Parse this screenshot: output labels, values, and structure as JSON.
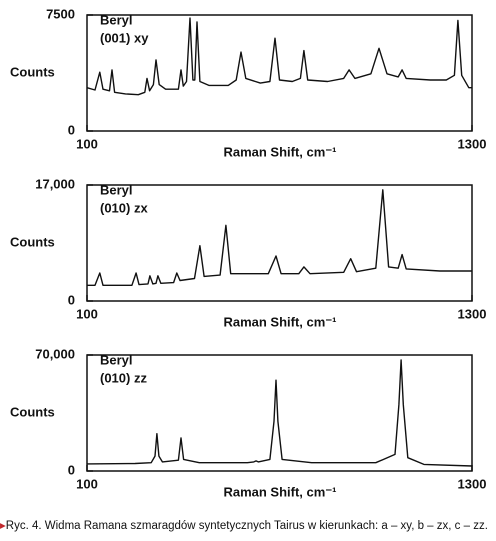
{
  "chart_data": [
    {
      "type": "line",
      "annotation": [
        "Beryl",
        "(001) xy"
      ],
      "ylabel": "Counts",
      "xlabel": "Raman Shift, cm⁻¹",
      "xlim": [
        100,
        1300
      ],
      "xticks": [
        100,
        1300
      ],
      "ylim": [
        0,
        7500
      ],
      "yticks": [
        0,
        7500
      ],
      "x": [
        100,
        125,
        140,
        150,
        170,
        178,
        186,
        220,
        260,
        280,
        287,
        295,
        307,
        315,
        325,
        345,
        385,
        393,
        400,
        410,
        421,
        430,
        436,
        443,
        452,
        480,
        540,
        565,
        580,
        595,
        640,
        670,
        686,
        700,
        740,
        765,
        776,
        788,
        850,
        900,
        917,
        935,
        985,
        1010,
        1035,
        1070,
        1082,
        1095,
        1170,
        1220,
        1245,
        1256,
        1268,
        1290,
        1300
      ],
      "series": [
        {
          "color": "#111111",
          "values": [
            2800,
            2650,
            3800,
            2700,
            2600,
            3950,
            2500,
            2400,
            2350,
            2500,
            3400,
            2600,
            3000,
            4600,
            3000,
            2700,
            2700,
            3950,
            2900,
            3200,
            7300,
            3300,
            3300,
            7050,
            3200,
            2950,
            2950,
            3300,
            5100,
            3400,
            3100,
            3200,
            6000,
            3300,
            3200,
            3400,
            5200,
            3300,
            3200,
            3400,
            3950,
            3400,
            3700,
            5350,
            3700,
            3500,
            3950,
            3400,
            3300,
            3300,
            3600,
            7150,
            3600,
            2800,
            2800
          ]
        }
      ]
    },
    {
      "type": "line",
      "annotation": [
        "Beryl",
        "(010) zx"
      ],
      "ylabel": "Counts",
      "xlabel": "Raman Shift, cm⁻¹",
      "xlim": [
        100,
        1300
      ],
      "xticks": [
        100,
        1300
      ],
      "ylim": [
        0,
        17000
      ],
      "yticks": [
        0,
        {
          "value": 17000,
          "label": "17,000"
        }
      ],
      "x": [
        100,
        125,
        140,
        150,
        240,
        253,
        262,
        290,
        296,
        305,
        315,
        321,
        330,
        370,
        380,
        390,
        435,
        452,
        465,
        515,
        533,
        548,
        665,
        689,
        705,
        760,
        776,
        795,
        900,
        922,
        940,
        1000,
        1022,
        1040,
        1070,
        1082,
        1095,
        1200,
        1300
      ],
      "series": [
        {
          "color": "#111111",
          "values": [
            2300,
            2300,
            4100,
            2300,
            2300,
            4100,
            2400,
            2500,
            3700,
            2500,
            2600,
            3700,
            2600,
            2700,
            4100,
            3000,
            3300,
            8100,
            3600,
            3800,
            11100,
            4000,
            4000,
            6600,
            4000,
            4000,
            5000,
            4000,
            4200,
            6200,
            4300,
            4800,
            16300,
            5000,
            4800,
            6800,
            4700,
            4400,
            4400
          ]
        }
      ]
    },
    {
      "type": "line",
      "annotation": [
        "Beryl",
        "(010) zz"
      ],
      "ylabel": "Counts",
      "xlabel": "Raman Shift, cm⁻¹",
      "xlim": [
        100,
        1300
      ],
      "xticks": [
        100,
        1300
      ],
      "ylim": [
        0,
        70000
      ],
      "yticks": [
        0,
        {
          "value": 70000,
          "label": "70,000"
        }
      ],
      "x": [
        100,
        250,
        300,
        312,
        318,
        324,
        335,
        385,
        393,
        401,
        450,
        600,
        620,
        627,
        634,
        670,
        683,
        689,
        695,
        708,
        800,
        1000,
        1060,
        1072,
        1079,
        1086,
        1100,
        1150,
        1300
      ],
      "series": [
        {
          "color": "#111111",
          "values": [
            4300,
            4500,
            5000,
            9000,
            22500,
            9000,
            5500,
            6500,
            20000,
            7000,
            5000,
            5000,
            5500,
            6100,
            5500,
            7000,
            30000,
            54800,
            30000,
            7000,
            5000,
            5000,
            10000,
            40000,
            67000,
            40000,
            8000,
            4000,
            3000
          ]
        }
      ]
    }
  ],
  "caption": "Ryc. 4. Widma Ramana szmaragdów syntetycznych Tairus w kierunkach: a – xy, b – zx, c – zz."
}
